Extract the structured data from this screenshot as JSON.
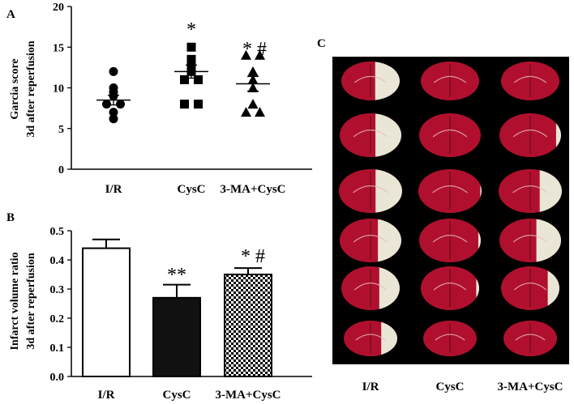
{
  "chart_data": [
    {
      "panel": "A",
      "type": "scatter",
      "ylabel_lines": [
        "Garcia score",
        "3d after reperfusion"
      ],
      "ylim": [
        0,
        20
      ],
      "yticks": [
        "0",
        "5",
        "10",
        "15",
        "20"
      ],
      "categories": [
        "I/R",
        "CysC",
        "3-MA+CysC"
      ],
      "markers": [
        "circle",
        "square",
        "triangle"
      ],
      "points": [
        [
          12,
          10,
          9.5,
          9,
          8,
          8,
          7,
          6.2
        ],
        [
          15,
          13.5,
          12.5,
          12,
          11,
          11,
          8,
          8
        ],
        [
          14,
          14,
          12,
          11,
          10,
          8,
          7,
          7
        ]
      ],
      "means": [
        8.5,
        12,
        10.5
      ],
      "sem_error": [
        0.6,
        0.8,
        0.9
      ],
      "annotations": [
        "",
        "*",
        "* #"
      ],
      "grid": false
    },
    {
      "panel": "B",
      "type": "bar",
      "ylabel_lines": [
        "Infarct volume ratio",
        "3d after reperfusion"
      ],
      "ylim": [
        0,
        0.5
      ],
      "yticks": [
        "0.0",
        "0.1",
        "0.2",
        "0.3",
        "0.4",
        "0.5"
      ],
      "categories": [
        "I/R",
        "CysC",
        "3-MA+CysC"
      ],
      "values": [
        0.44,
        0.27,
        0.35
      ],
      "sem_error": [
        0.03,
        0.045,
        0.022
      ],
      "fills": [
        "white",
        "black",
        "checker"
      ],
      "annotations": [
        "",
        "**",
        "* #"
      ],
      "grid": false
    }
  ],
  "panel_c": {
    "label": "C",
    "columns": [
      "I/R",
      "CysC",
      "3-MA+CysC"
    ],
    "rows": 6,
    "colors": {
      "background": "#000000",
      "tissue": "#b0102e",
      "infarct": "#eae6d6"
    },
    "infarct_fractions": [
      [
        0.42,
        0.42,
        0.42,
        0.38,
        0.35,
        0.3
      ],
      [
        0.0,
        0.0,
        0.02,
        0.04,
        0.05,
        0.0
      ],
      [
        0.0,
        0.08,
        0.35,
        0.4,
        0.2,
        0.0
      ]
    ]
  }
}
